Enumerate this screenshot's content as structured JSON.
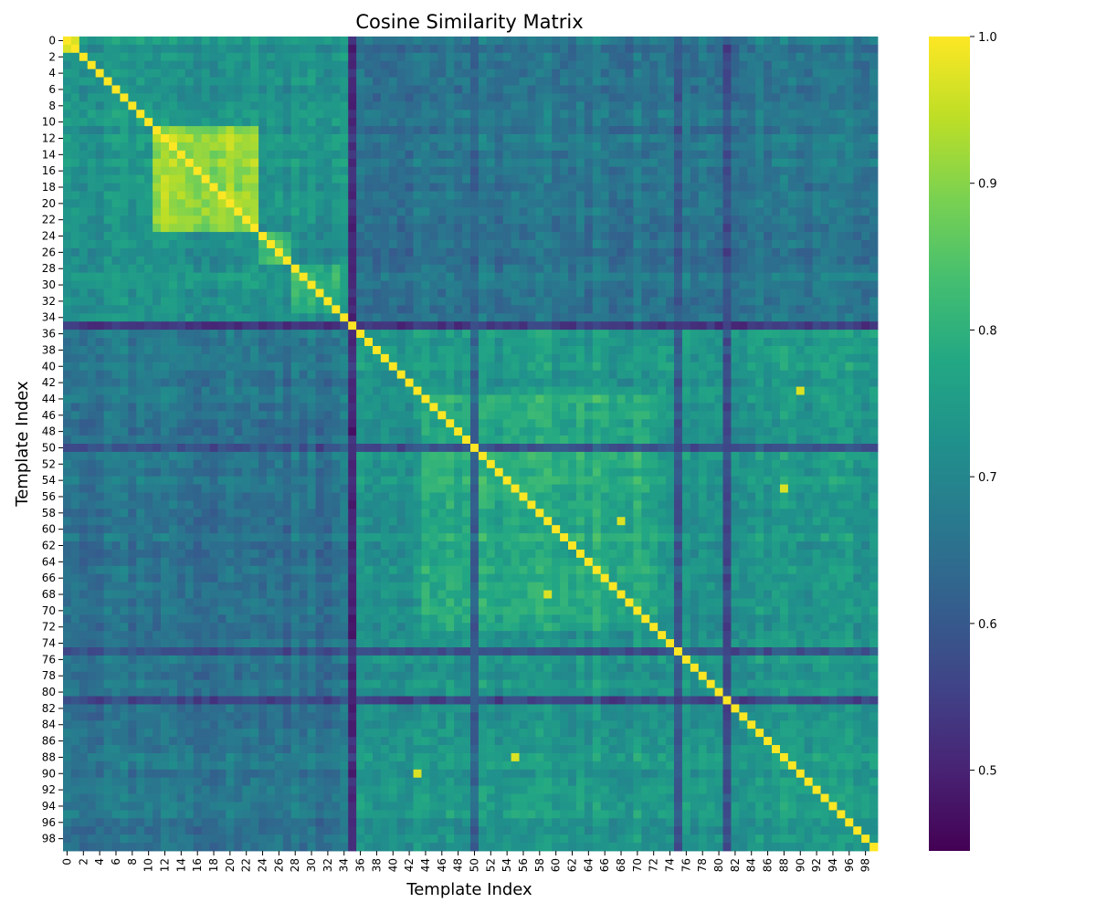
{
  "chart_data": {
    "type": "heatmap",
    "title": "Cosine Similarity Matrix",
    "xlabel": "Template Index",
    "ylabel": "Template Index",
    "n": 100,
    "x_tick_labels": [
      "0",
      "2",
      "4",
      "6",
      "8",
      "10",
      "12",
      "14",
      "16",
      "18",
      "20",
      "22",
      "24",
      "26",
      "28",
      "30",
      "32",
      "34",
      "36",
      "38",
      "40",
      "42",
      "44",
      "46",
      "48",
      "50",
      "52",
      "54",
      "56",
      "58",
      "60",
      "62",
      "64",
      "66",
      "68",
      "70",
      "72",
      "74",
      "76",
      "78",
      "80",
      "82",
      "84",
      "86",
      "88",
      "90",
      "92",
      "94",
      "96",
      "98"
    ],
    "y_tick_labels": [
      "0",
      "2",
      "4",
      "6",
      "8",
      "10",
      "12",
      "14",
      "16",
      "18",
      "20",
      "22",
      "24",
      "26",
      "28",
      "30",
      "32",
      "34",
      "36",
      "38",
      "40",
      "42",
      "44",
      "46",
      "48",
      "50",
      "52",
      "54",
      "56",
      "58",
      "60",
      "62",
      "64",
      "66",
      "68",
      "70",
      "72",
      "74",
      "76",
      "78",
      "80",
      "82",
      "84",
      "86",
      "88",
      "90",
      "92",
      "94",
      "96",
      "98"
    ],
    "colorbar": {
      "colormap": "viridis",
      "vmin": 0.445,
      "vmax": 1.0,
      "ticks": [
        0.5,
        0.6,
        0.7,
        0.8,
        0.9,
        1.0
      ],
      "tick_labels": [
        "0.5",
        "0.6",
        "0.7",
        "0.8",
        "0.9",
        "1.0"
      ]
    },
    "blocks": [
      {
        "start": 0,
        "end": 34,
        "within_similarity": 0.73
      },
      {
        "start": 11,
        "end": 23,
        "within_similarity": 0.91
      },
      {
        "start": 24,
        "end": 27,
        "within_similarity": 0.85
      },
      {
        "start": 28,
        "end": 33,
        "within_similarity": 0.8
      },
      {
        "start": 36,
        "end": 99,
        "within_similarity": 0.74
      },
      {
        "start": 44,
        "end": 72,
        "within_similarity": 0.79
      }
    ],
    "between_block_similarity": 0.66,
    "outlier_templates": [
      {
        "index": 35,
        "typical_similarity": 0.52
      },
      {
        "index": 75,
        "typical_similarity": 0.6
      },
      {
        "index": 81,
        "typical_similarity": 0.58
      },
      {
        "index": 50,
        "typical_similarity": 0.6
      }
    ],
    "notable_high_pairs": [
      {
        "i": 43,
        "j": 90,
        "value": 0.97
      },
      {
        "i": 55,
        "j": 88,
        "value": 0.97
      },
      {
        "i": 59,
        "j": 68,
        "value": 0.97
      },
      {
        "i": 0,
        "j": 1,
        "value": 0.97
      }
    ],
    "diagonal_value": 1.0
  }
}
